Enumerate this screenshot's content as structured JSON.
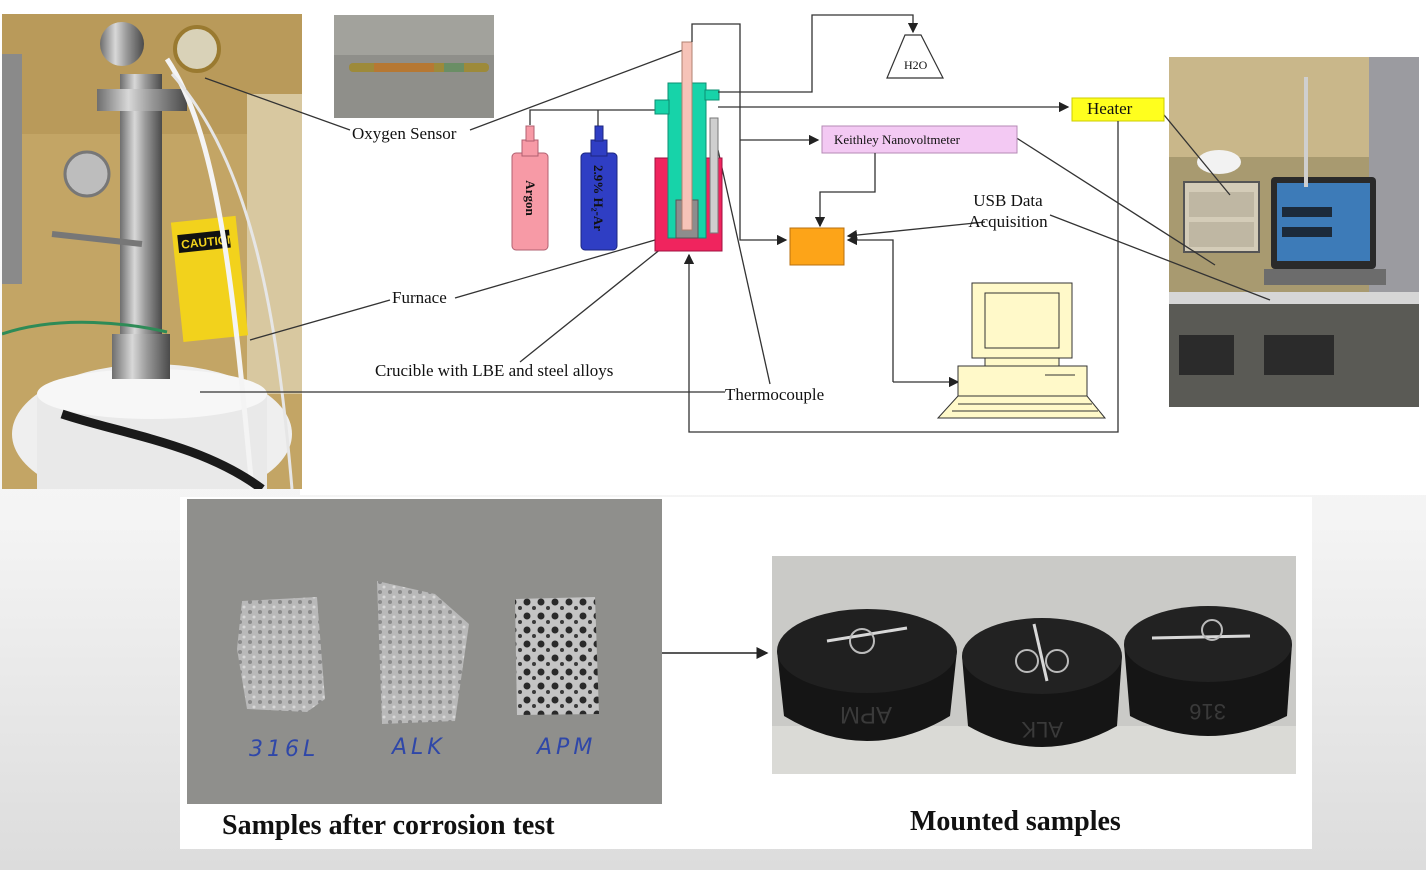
{
  "diagram": {
    "labels": {
      "oxygen_sensor": "Oxygen Sensor",
      "argon": "Argon",
      "h2_ar": "2.9% H₂-Ar",
      "h2o": "H2O",
      "heater": "Heater",
      "keithley": "Keithley Nanovoltmeter",
      "usb": "USB Data Acquisition",
      "furnace": "Furnace",
      "crucible": "Crucible with LBE and steel alloys",
      "thermocouple": "Thermocouple"
    },
    "caution_sign": "CAUTION"
  },
  "samples": {
    "labels": [
      "316L",
      "ALK",
      "APM"
    ],
    "caption": "Samples after corrosion test"
  },
  "mounted": {
    "caption": "Mounted samples",
    "engravings": [
      "APM",
      "ALK",
      "316"
    ]
  }
}
